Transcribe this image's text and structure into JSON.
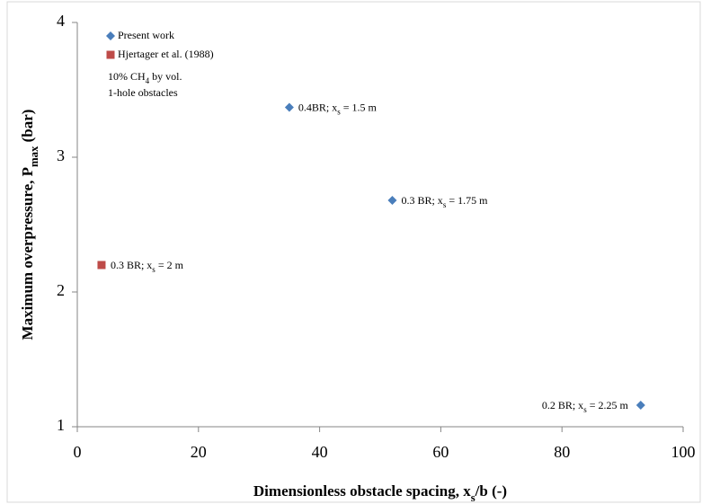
{
  "chart_data": {
    "type": "scatter",
    "xlabel_parts": [
      "Dimensionless obstacle spacing, x",
      "s",
      "/b (-)"
    ],
    "ylabel_parts": [
      "Maximum overpressure, P",
      "max",
      "  (bar)"
    ],
    "note_lines": [
      [
        "10% CH",
        "4",
        " by vol."
      ],
      [
        "1-hole obstacles"
      ]
    ],
    "xlim": [
      0,
      100
    ],
    "xticks": [
      0,
      20,
      40,
      60,
      80,
      100
    ],
    "ylim": [
      1,
      4
    ],
    "yticks": [
      1,
      2,
      3,
      4
    ],
    "grid": false,
    "legend": "upper left",
    "series": [
      {
        "name": "Present work",
        "color": "#4a7ebb",
        "marker": "diamond",
        "x": [
          35,
          52,
          93
        ],
        "values": [
          3.37,
          2.68,
          1.16
        ],
        "point_labels": [
          [
            "0.4BR; x",
            "s",
            " = 1.5 m"
          ],
          [
            "0.3 BR; x",
            "s",
            " = 1.75 m"
          ],
          [
            "0.2 BR; x",
            "s",
            " = 2.25 m"
          ]
        ]
      },
      {
        "name": "Hjertager et al. (1988)",
        "color": "#be4b48",
        "marker": "square",
        "x": [
          4
        ],
        "values": [
          2.2
        ],
        "point_labels": [
          [
            "0.3 BR; x",
            "s",
            " = 2 m"
          ]
        ]
      }
    ]
  }
}
